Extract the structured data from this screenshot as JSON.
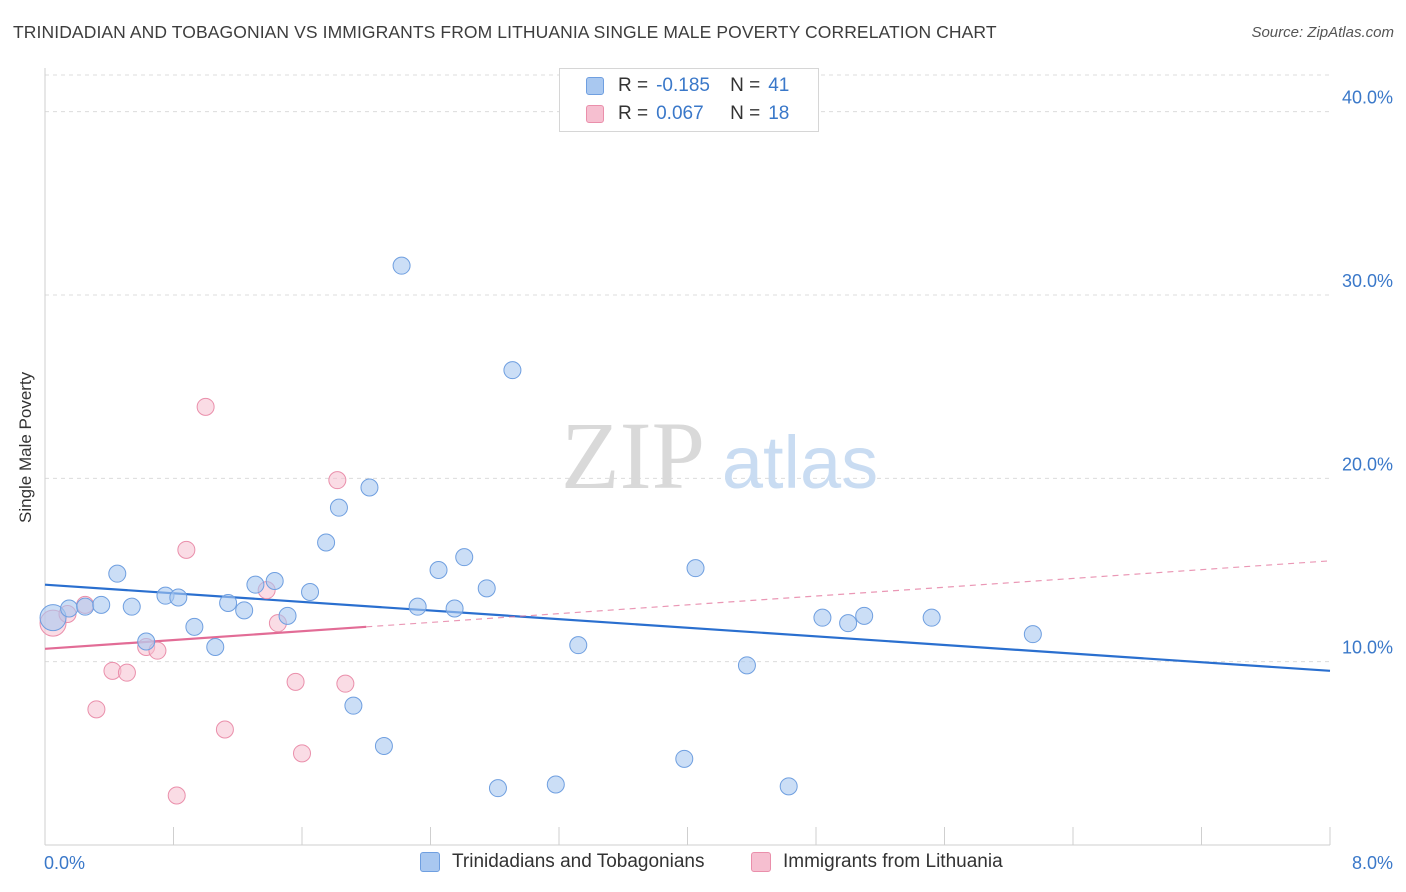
{
  "header": {
    "title": "TRINIDADIAN AND TOBAGONIAN VS IMMIGRANTS FROM LITHUANIA SINGLE MALE POVERTY CORRELATION CHART",
    "source": "Source: ZipAtlas.com"
  },
  "watermark": {
    "zip": "ZIP",
    "atlas": "atlas"
  },
  "legend": {
    "series1": {
      "r_label": "R =",
      "r_value": "-0.185",
      "n_label": "N =",
      "n_value": "41"
    },
    "series2": {
      "r_label": "R =",
      "r_value": "0.067",
      "n_label": "N =",
      "n_value": "18"
    }
  },
  "colors": {
    "blue_fill": "#a9c8f0",
    "blue_stroke": "#6f9fe0",
    "blue_line": "#2a6fcf",
    "pink_fill": "#f6bfd0",
    "pink_stroke": "#ea8fab",
    "pink_line": "#e26c96",
    "tick_label": "#3a78c9",
    "grid": "#dcdcdc"
  },
  "chart_data": {
    "type": "scatter",
    "title": "TRINIDADIAN AND TOBAGONIAN VS IMMIGRANTS FROM LITHUANIA SINGLE MALE POVERTY CORRELATION CHART",
    "xlabel": "",
    "ylabel": "Single Male Poverty",
    "xlim": [
      0,
      8
    ],
    "ylim": [
      0,
      42
    ],
    "x_tick_labels": [
      "0.0%",
      "8.0%"
    ],
    "y_ticks": [
      10,
      20,
      30,
      40
    ],
    "y_tick_labels": [
      "10.0%",
      "20.0%",
      "30.0%",
      "40.0%"
    ],
    "grid": true,
    "legend_position": "top-center",
    "series": [
      {
        "name": "Trinidadians and Tobagonians",
        "color": "#a9c8f0",
        "points": [
          [
            0.05,
            12.4
          ],
          [
            0.15,
            12.9
          ],
          [
            0.25,
            13.0
          ],
          [
            0.35,
            13.1
          ],
          [
            0.45,
            14.8
          ],
          [
            0.54,
            13.0
          ],
          [
            0.63,
            11.1
          ],
          [
            0.75,
            13.6
          ],
          [
            0.83,
            13.5
          ],
          [
            0.93,
            11.9
          ],
          [
            1.06,
            10.8
          ],
          [
            1.14,
            13.2
          ],
          [
            1.24,
            12.8
          ],
          [
            1.31,
            14.2
          ],
          [
            1.43,
            14.4
          ],
          [
            1.51,
            12.5
          ],
          [
            1.65,
            13.8
          ],
          [
            1.75,
            16.5
          ],
          [
            1.83,
            18.4
          ],
          [
            1.92,
            7.6
          ],
          [
            2.02,
            19.5
          ],
          [
            2.11,
            5.4
          ],
          [
            2.22,
            31.6
          ],
          [
            2.32,
            13.0
          ],
          [
            2.45,
            15.0
          ],
          [
            2.55,
            12.9
          ],
          [
            2.61,
            15.7
          ],
          [
            2.75,
            14.0
          ],
          [
            2.82,
            3.1
          ],
          [
            2.91,
            25.9
          ],
          [
            3.18,
            3.3
          ],
          [
            3.32,
            10.9
          ],
          [
            3.98,
            4.7
          ],
          [
            4.05,
            15.1
          ],
          [
            4.37,
            9.8
          ],
          [
            4.63,
            3.2
          ],
          [
            4.84,
            12.4
          ],
          [
            5.0,
            12.1
          ],
          [
            5.1,
            12.5
          ],
          [
            5.52,
            12.4
          ],
          [
            6.15,
            11.5
          ]
        ],
        "trend": {
          "x": [
            0,
            8
          ],
          "y": [
            14.2,
            9.5
          ]
        }
      },
      {
        "name": "Immigrants from Lithuania",
        "color": "#f6bfd0",
        "points": [
          [
            0.05,
            12.1
          ],
          [
            0.14,
            12.6
          ],
          [
            0.25,
            13.1
          ],
          [
            0.32,
            7.4
          ],
          [
            0.42,
            9.5
          ],
          [
            0.51,
            9.4
          ],
          [
            0.63,
            10.8
          ],
          [
            0.7,
            10.6
          ],
          [
            0.82,
            2.7
          ],
          [
            0.88,
            16.1
          ],
          [
            1.0,
            23.9
          ],
          [
            1.12,
            6.3
          ],
          [
            1.38,
            13.9
          ],
          [
            1.45,
            12.1
          ],
          [
            1.56,
            8.9
          ],
          [
            1.6,
            5.0
          ],
          [
            1.82,
            19.9
          ],
          [
            1.87,
            8.8
          ]
        ],
        "trend": {
          "x": [
            0,
            2.0
          ],
          "y": [
            10.7,
            11.9
          ],
          "extended_to": [
            8,
            15.5
          ]
        }
      }
    ]
  },
  "bottom_legend": {
    "item1": "Trinidadians and Tobagonians",
    "item2": "Immigrants from Lithuania"
  }
}
